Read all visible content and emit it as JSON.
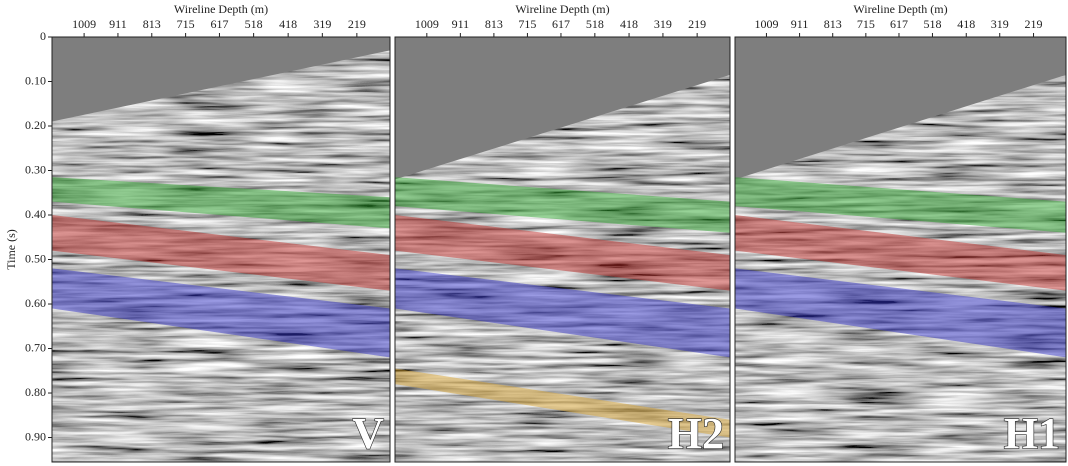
{
  "chart_data": [
    {
      "type": "seismic",
      "label": "V",
      "xlabel": "Wireline Depth (m)",
      "ylabel": "Time (s)",
      "xlim": [
        1102,
        123
      ],
      "xticks": [
        1009,
        911,
        813,
        715,
        617,
        518,
        418,
        319,
        219
      ],
      "ylim": [
        0,
        0.955
      ],
      "yticks": [
        0,
        {
          "value": 0.1,
          "label": "0.10"
        },
        {
          "value": 0.2,
          "label": "0.20"
        },
        {
          "value": 0.3,
          "label": "0.30"
        },
        {
          "value": 0.4,
          "label": "0.40"
        },
        {
          "value": 0.5,
          "label": "0.50"
        },
        {
          "value": 0.6,
          "label": "0.60"
        },
        {
          "value": 0.7,
          "label": "0.70"
        },
        {
          "value": 0.8,
          "label": "0.80"
        },
        {
          "value": 0.9,
          "label": "0.90"
        }
      ],
      "muted_zone": [
        0.19,
        0.03
      ],
      "horizons": [
        {
          "color": "#2fa52f",
          "top": [
            0.315,
            0.36
          ],
          "bottom": [
            0.37,
            0.43
          ]
        },
        {
          "color": "#c0302c",
          "top": [
            0.4,
            0.49
          ],
          "bottom": [
            0.48,
            0.57
          ]
        },
        {
          "color": "#3535c8",
          "top": [
            0.52,
            0.61
          ],
          "bottom": [
            0.61,
            0.72
          ]
        }
      ]
    },
    {
      "type": "seismic",
      "label": "H2",
      "xlabel": "Wireline Depth (m)",
      "xlim": [
        1102,
        123
      ],
      "xticks": [
        1009,
        911,
        813,
        715,
        617,
        518,
        418,
        319,
        219
      ],
      "ylim": [
        0,
        0.955
      ],
      "muted_zone": [
        0.32,
        0.085
      ],
      "horizons": [
        {
          "color": "#2fa52f",
          "top": [
            0.315,
            0.37
          ],
          "bottom": [
            0.38,
            0.44
          ]
        },
        {
          "color": "#c0302c",
          "top": [
            0.4,
            0.49
          ],
          "bottom": [
            0.48,
            0.57
          ]
        },
        {
          "color": "#3535c8",
          "top": [
            0.52,
            0.61
          ],
          "bottom": [
            0.61,
            0.72
          ]
        },
        {
          "color": "#d9a534",
          "top": [
            0.745,
            0.86
          ],
          "bottom": [
            0.78,
            0.9
          ]
        }
      ]
    },
    {
      "type": "seismic",
      "label": "H1",
      "xlabel": "Wireline Depth (m)",
      "xlim": [
        1102,
        123
      ],
      "xticks": [
        1009,
        911,
        813,
        715,
        617,
        518,
        418,
        319,
        219
      ],
      "ylim": [
        0,
        0.955
      ],
      "muted_zone": [
        0.32,
        0.085
      ],
      "horizons": [
        {
          "color": "#2fa52f",
          "top": [
            0.315,
            0.37
          ],
          "bottom": [
            0.38,
            0.44
          ]
        },
        {
          "color": "#c0302c",
          "top": [
            0.4,
            0.49
          ],
          "bottom": [
            0.48,
            0.57
          ]
        },
        {
          "color": "#3535c8",
          "top": [
            0.52,
            0.61
          ],
          "bottom": [
            0.61,
            0.72
          ]
        }
      ]
    }
  ]
}
